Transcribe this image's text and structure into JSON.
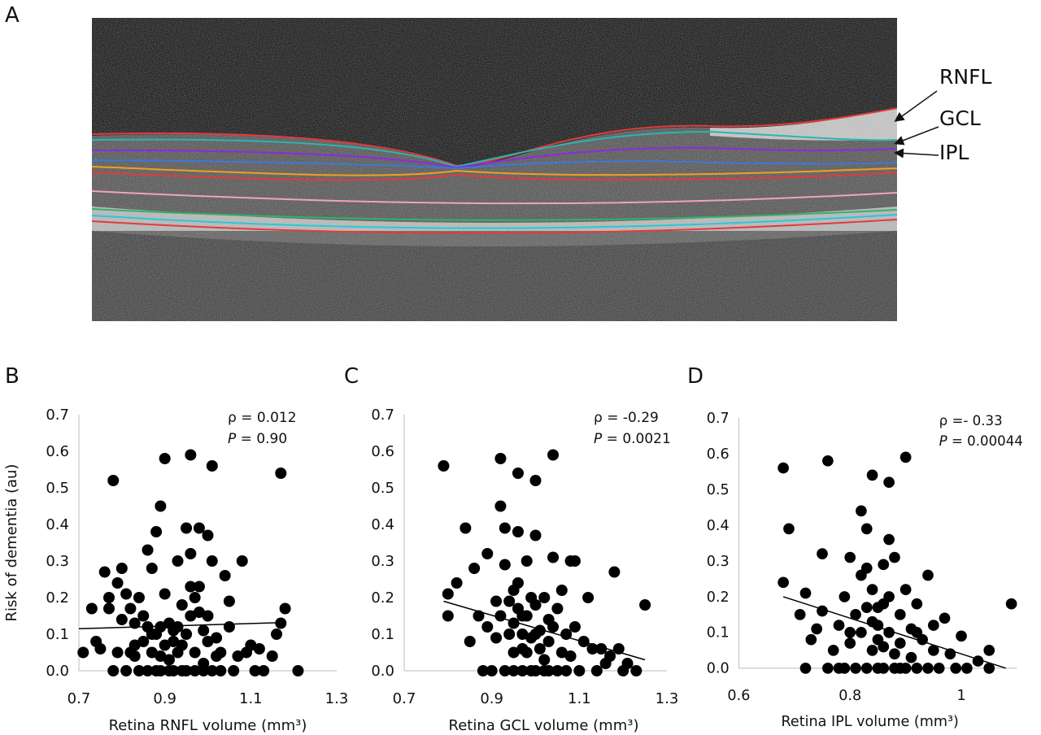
{
  "panels": {
    "a": "A",
    "b": "B",
    "c": "C",
    "d": "D"
  },
  "oct": {
    "labels": [
      "RNFL",
      "GCL",
      "IPL"
    ],
    "colors": {
      "red": "#e23b3b",
      "teal": "#2ab5b0",
      "purple": "#8a2be2",
      "blue": "#3c78d8",
      "orange": "#f0a020",
      "pink": "#f2a2c0",
      "green": "#2fb36a",
      "cyan": "#28c8d8"
    }
  },
  "chart_data": [
    {
      "type": "scatter",
      "panel": "B",
      "xlabel": "Retina RNFL volume (mm³)",
      "ylabel": "Risk of dementia (au)",
      "xlim": [
        0.7,
        1.3
      ],
      "ylim": [
        0.0,
        0.7
      ],
      "xticks": [
        "0.7",
        "0.9",
        "1.1",
        "1.3"
      ],
      "yticks": [
        "0.0",
        "0.1",
        "0.2",
        "0.3",
        "0.4",
        "0.5",
        "0.6",
        "0.7"
      ],
      "stat_rho": "ρ = 0.012",
      "stat_p_prefix": "P",
      "stat_p_value": " = 0.90",
      "trend": [
        [
          0.7,
          0.115
        ],
        [
          1.18,
          0.132
        ]
      ],
      "points": [
        [
          0.71,
          0.05
        ],
        [
          0.73,
          0.17
        ],
        [
          0.74,
          0.08
        ],
        [
          0.75,
          0.06
        ],
        [
          0.76,
          0.27
        ],
        [
          0.77,
          0.2
        ],
        [
          0.77,
          0.17
        ],
        [
          0.78,
          0.52
        ],
        [
          0.78,
          0.0
        ],
        [
          0.79,
          0.24
        ],
        [
          0.79,
          0.05
        ],
        [
          0.8,
          0.28
        ],
        [
          0.8,
          0.14
        ],
        [
          0.81,
          0.0
        ],
        [
          0.81,
          0.21
        ],
        [
          0.82,
          0.17
        ],
        [
          0.82,
          0.05
        ],
        [
          0.83,
          0.04
        ],
        [
          0.83,
          0.07
        ],
        [
          0.84,
          0.2
        ],
        [
          0.84,
          0.0
        ],
        [
          0.85,
          0.15
        ],
        [
          0.85,
          0.08
        ],
        [
          0.86,
          0.33
        ],
        [
          0.86,
          0.0
        ],
        [
          0.86,
          0.12
        ],
        [
          0.87,
          0.1
        ],
        [
          0.87,
          0.05
        ],
        [
          0.87,
          0.28
        ],
        [
          0.88,
          0.38
        ],
        [
          0.88,
          0.1
        ],
        [
          0.88,
          0.0
        ],
        [
          0.89,
          0.12
        ],
        [
          0.89,
          0.04
        ],
        [
          0.89,
          0.45
        ],
        [
          0.9,
          0.58
        ],
        [
          0.9,
          0.21
        ],
        [
          0.9,
          0.07
        ],
        [
          0.91,
          0.13
        ],
        [
          0.91,
          0.0
        ],
        [
          0.91,
          0.03
        ],
        [
          0.92,
          0.11
        ],
        [
          0.92,
          0.08
        ],
        [
          0.92,
          0.0
        ],
        [
          0.93,
          0.3
        ],
        [
          0.93,
          0.05
        ],
        [
          0.93,
          0.12
        ],
        [
          0.94,
          0.0
        ],
        [
          0.94,
          0.18
        ],
        [
          0.95,
          0.1
        ],
        [
          0.95,
          0.39
        ],
        [
          0.95,
          0.0
        ],
        [
          0.96,
          0.59
        ],
        [
          0.96,
          0.32
        ],
        [
          0.96,
          0.23
        ],
        [
          0.96,
          0.15
        ],
        [
          0.97,
          0.05
        ],
        [
          0.97,
          0.0
        ],
        [
          0.98,
          0.39
        ],
        [
          0.98,
          0.23
        ],
        [
          0.98,
          0.16
        ],
        [
          0.99,
          0.02
        ],
        [
          0.99,
          0.11
        ],
        [
          0.99,
          0.0
        ],
        [
          1.0,
          0.08
        ],
        [
          1.0,
          0.37
        ],
        [
          1.01,
          0.56
        ],
        [
          1.01,
          0.3
        ],
        [
          1.01,
          0.0
        ],
        [
          1.02,
          0.09
        ],
        [
          1.02,
          0.04
        ],
        [
          1.03,
          0.0
        ],
        [
          1.03,
          0.05
        ],
        [
          1.04,
          0.26
        ],
        [
          1.05,
          0.19
        ],
        [
          1.05,
          0.12
        ],
        [
          1.06,
          0.0
        ],
        [
          1.07,
          0.04
        ],
        [
          1.08,
          0.3
        ],
        [
          1.09,
          0.05
        ],
        [
          1.1,
          0.07
        ],
        [
          1.11,
          0.0
        ],
        [
          1.12,
          0.06
        ],
        [
          1.13,
          0.0
        ],
        [
          1.15,
          0.04
        ],
        [
          1.16,
          0.1
        ],
        [
          1.17,
          0.54
        ],
        [
          1.17,
          0.13
        ],
        [
          1.18,
          0.17
        ],
        [
          1.21,
          0.0
        ],
        [
          0.83,
          0.13
        ],
        [
          0.97,
          0.2
        ],
        [
          1.0,
          0.15
        ],
        [
          0.94,
          0.07
        ],
        [
          0.89,
          0.0
        ]
      ]
    },
    {
      "type": "scatter",
      "panel": "C",
      "xlabel": "Retina GCL volume (mm³)",
      "ylabel": "",
      "xlim": [
        0.7,
        1.3
      ],
      "ylim": [
        0.0,
        0.7
      ],
      "xticks": [
        "0.7",
        "0.9",
        "1.1",
        "1.3"
      ],
      "yticks": [
        "0.0",
        "0.1",
        "0.2",
        "0.3",
        "0.4",
        "0.5",
        "0.6",
        "0.7"
      ],
      "stat_rho": "ρ = -0.29",
      "stat_p_prefix": "P",
      "stat_p_value": " = 0.0021",
      "trend": [
        [
          0.79,
          0.19
        ],
        [
          1.25,
          0.03
        ]
      ],
      "points": [
        [
          0.79,
          0.56
        ],
        [
          0.8,
          0.21
        ],
        [
          0.8,
          0.15
        ],
        [
          0.82,
          0.24
        ],
        [
          0.84,
          0.39
        ],
        [
          0.85,
          0.08
        ],
        [
          0.86,
          0.28
        ],
        [
          0.87,
          0.15
        ],
        [
          0.88,
          0.0
        ],
        [
          0.89,
          0.32
        ],
        [
          0.89,
          0.12
        ],
        [
          0.9,
          0.0
        ],
        [
          0.91,
          0.19
        ],
        [
          0.91,
          0.09
        ],
        [
          0.92,
          0.58
        ],
        [
          0.92,
          0.45
        ],
        [
          0.92,
          0.15
        ],
        [
          0.93,
          0.29
        ],
        [
          0.93,
          0.0
        ],
        [
          0.93,
          0.39
        ],
        [
          0.94,
          0.1
        ],
        [
          0.94,
          0.19
        ],
        [
          0.95,
          0.05
        ],
        [
          0.95,
          0.13
        ],
        [
          0.95,
          0.0
        ],
        [
          0.96,
          0.54
        ],
        [
          0.96,
          0.38
        ],
        [
          0.96,
          0.24
        ],
        [
          0.96,
          0.17
        ],
        [
          0.97,
          0.06
        ],
        [
          0.97,
          0.0
        ],
        [
          0.97,
          0.1
        ],
        [
          0.98,
          0.3
        ],
        [
          0.98,
          0.15
        ],
        [
          0.98,
          0.05
        ],
        [
          0.99,
          0.09
        ],
        [
          0.99,
          0.0
        ],
        [
          1.0,
          0.52
        ],
        [
          1.0,
          0.37
        ],
        [
          1.0,
          0.18
        ],
        [
          1.0,
          0.0
        ],
        [
          1.01,
          0.11
        ],
        [
          1.01,
          0.06
        ],
        [
          1.02,
          0.2
        ],
        [
          1.02,
          0.03
        ],
        [
          1.02,
          0.0
        ],
        [
          1.03,
          0.14
        ],
        [
          1.03,
          0.08
        ],
        [
          1.04,
          0.59
        ],
        [
          1.04,
          0.31
        ],
        [
          1.04,
          0.12
        ],
        [
          1.05,
          0.0
        ],
        [
          1.05,
          0.17
        ],
        [
          1.06,
          0.05
        ],
        [
          1.06,
          0.22
        ],
        [
          1.07,
          0.0
        ],
        [
          1.07,
          0.1
        ],
        [
          1.08,
          0.3
        ],
        [
          1.08,
          0.04
        ],
        [
          1.09,
          0.3
        ],
        [
          1.09,
          0.12
        ],
        [
          1.1,
          0.0
        ],
        [
          1.11,
          0.08
        ],
        [
          1.12,
          0.2
        ],
        [
          1.13,
          0.06
        ],
        [
          1.14,
          0.0
        ],
        [
          1.15,
          0.06
        ],
        [
          1.16,
          0.02
        ],
        [
          1.17,
          0.04
        ],
        [
          1.18,
          0.27
        ],
        [
          1.19,
          0.06
        ],
        [
          1.2,
          0.0
        ],
        [
          1.21,
          0.02
        ],
        [
          1.23,
          0.0
        ],
        [
          1.25,
          0.18
        ],
        [
          0.95,
          0.22
        ],
        [
          1.0,
          0.1
        ],
        [
          0.97,
          0.15
        ],
        [
          1.03,
          0.0
        ],
        [
          0.99,
          0.2
        ]
      ]
    },
    {
      "type": "scatter",
      "panel": "D",
      "xlabel": "Retina IPL volume (mm³)",
      "ylabel": "",
      "xlim": [
        0.6,
        1.1
      ],
      "ylim": [
        0.0,
        0.7
      ],
      "xticks": [
        "0.6",
        "0.8",
        "1"
      ],
      "yticks": [
        "0.0",
        "0.1",
        "0.2",
        "0.3",
        "0.4",
        "0.5",
        "0.6",
        "0.7"
      ],
      "stat_rho": "ρ =- 0.33",
      "stat_p_prefix": "P",
      "stat_p_value": " = 0.00044",
      "trend": [
        [
          0.68,
          0.2
        ],
        [
          1.08,
          0.0
        ]
      ],
      "points": [
        [
          0.68,
          0.56
        ],
        [
          0.68,
          0.24
        ],
        [
          0.69,
          0.39
        ],
        [
          0.71,
          0.15
        ],
        [
          0.72,
          0.0
        ],
        [
          0.72,
          0.21
        ],
        [
          0.73,
          0.08
        ],
        [
          0.74,
          0.11
        ],
        [
          0.75,
          0.32
        ],
        [
          0.75,
          0.16
        ],
        [
          0.76,
          0.58
        ],
        [
          0.76,
          0.0
        ],
        [
          0.77,
          0.05
        ],
        [
          0.78,
          0.12
        ],
        [
          0.79,
          0.2
        ],
        [
          0.79,
          0.0
        ],
        [
          0.8,
          0.31
        ],
        [
          0.8,
          0.07
        ],
        [
          0.81,
          0.15
        ],
        [
          0.81,
          0.0
        ],
        [
          0.82,
          0.44
        ],
        [
          0.82,
          0.26
        ],
        [
          0.82,
          0.1
        ],
        [
          0.83,
          0.39
        ],
        [
          0.83,
          0.0
        ],
        [
          0.83,
          0.17
        ],
        [
          0.84,
          0.05
        ],
        [
          0.84,
          0.22
        ],
        [
          0.84,
          0.54
        ],
        [
          0.85,
          0.12
        ],
        [
          0.85,
          0.0
        ],
        [
          0.85,
          0.08
        ],
        [
          0.86,
          0.29
        ],
        [
          0.86,
          0.18
        ],
        [
          0.86,
          0.0
        ],
        [
          0.87,
          0.52
        ],
        [
          0.87,
          0.36
        ],
        [
          0.87,
          0.1
        ],
        [
          0.88,
          0.04
        ],
        [
          0.88,
          0.31
        ],
        [
          0.88,
          0.0
        ],
        [
          0.89,
          0.15
        ],
        [
          0.89,
          0.07
        ],
        [
          0.9,
          0.22
        ],
        [
          0.9,
          0.59
        ],
        [
          0.9,
          0.0
        ],
        [
          0.91,
          0.11
        ],
        [
          0.91,
          0.03
        ],
        [
          0.92,
          0.18
        ],
        [
          0.92,
          0.0
        ],
        [
          0.93,
          0.08
        ],
        [
          0.94,
          0.26
        ],
        [
          0.94,
          0.0
        ],
        [
          0.95,
          0.12
        ],
        [
          0.95,
          0.05
        ],
        [
          0.96,
          0.0
        ],
        [
          0.97,
          0.14
        ],
        [
          0.98,
          0.04
        ],
        [
          0.99,
          0.0
        ],
        [
          1.0,
          0.09
        ],
        [
          1.01,
          0.0
        ],
        [
          1.03,
          0.02
        ],
        [
          1.05,
          0.05
        ],
        [
          1.05,
          0.0
        ],
        [
          1.09,
          0.18
        ],
        [
          0.8,
          0.1
        ],
        [
          0.84,
          0.13
        ],
        [
          0.87,
          0.2
        ],
        [
          0.83,
          0.28
        ],
        [
          0.86,
          0.06
        ],
        [
          0.89,
          0.0
        ],
        [
          0.78,
          0.0
        ],
        [
          0.92,
          0.1
        ],
        [
          0.85,
          0.17
        ]
      ]
    }
  ]
}
